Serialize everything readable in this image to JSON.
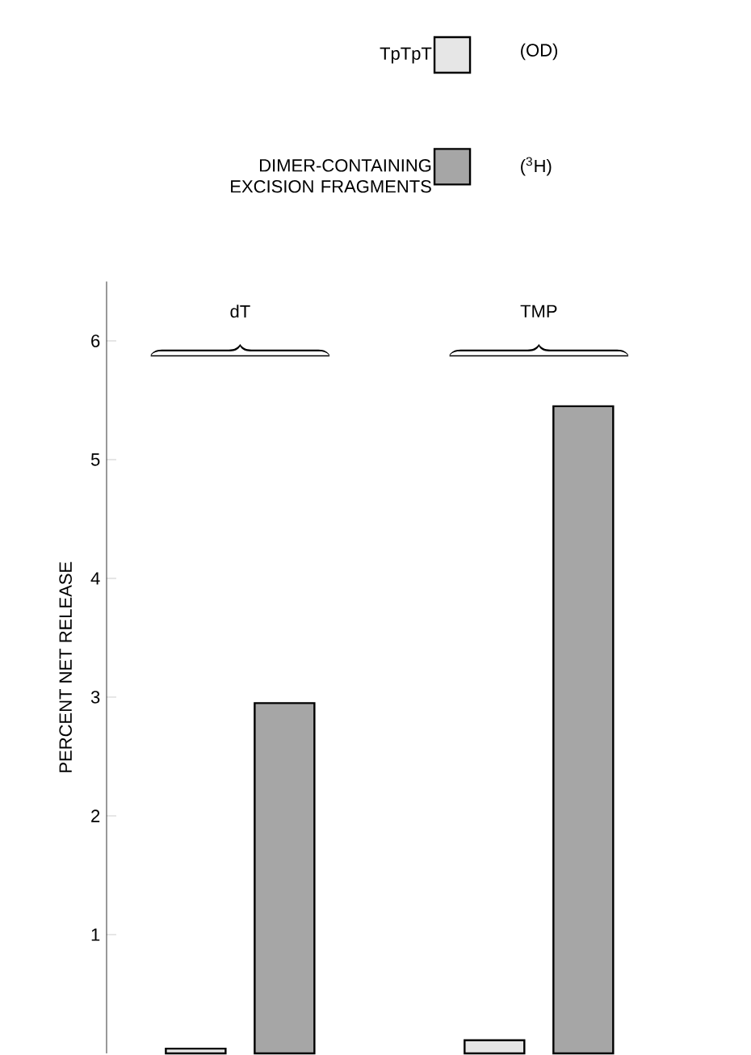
{
  "chart_data": {
    "type": "bar",
    "ylabel": "PERCENT NET RELEASE",
    "categories": [
      "dT",
      "TMP"
    ],
    "series": [
      {
        "name": "TpTpT",
        "color": "#e6e6e6",
        "values": [
          0.04,
          0.11
        ]
      },
      {
        "name": "DIMER-CONTAINING EXCISION FRAGMENTS",
        "color": "#a6a6a6",
        "values": [
          2.95,
          5.45
        ]
      }
    ],
    "annotations": [
      "(OD)",
      "($^{3}$H)"
    ],
    "ylim": [
      0,
      6.5
    ],
    "yticks": [
      1,
      2,
      3,
      4,
      5,
      6
    ],
    "legend": "top"
  }
}
